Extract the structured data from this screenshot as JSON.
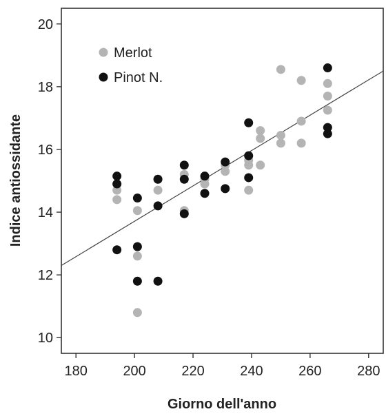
{
  "chart_data": {
    "type": "scatter",
    "title": "",
    "xlabel": "Giorno dell'anno",
    "ylabel": "Indice antiossidante",
    "xlim": [
      175,
      285
    ],
    "ylim": [
      9.5,
      20.5
    ],
    "xticks": [
      180,
      200,
      220,
      240,
      260,
      280
    ],
    "yticks": [
      10,
      12,
      14,
      16,
      18,
      20
    ],
    "grid": false,
    "legend_position": "top-left",
    "trendline": {
      "x": [
        175,
        285
      ],
      "y": [
        12.3,
        18.5
      ]
    },
    "series": [
      {
        "name": "Merlot",
        "color": "#b4b4b4",
        "points": [
          [
            194,
            14.7
          ],
          [
            194,
            14.4
          ],
          [
            194,
            14.9
          ],
          [
            201,
            14.05
          ],
          [
            201,
            12.6
          ],
          [
            201,
            10.8
          ],
          [
            208,
            14.7
          ],
          [
            208,
            15.05
          ],
          [
            217,
            14.05
          ],
          [
            217,
            15.2
          ],
          [
            224,
            15.05
          ],
          [
            224,
            14.9
          ],
          [
            231,
            15.5
          ],
          [
            231,
            15.3
          ],
          [
            239,
            14.7
          ],
          [
            239,
            15.5
          ],
          [
            239,
            15.65
          ],
          [
            243,
            16.6
          ],
          [
            243,
            16.35
          ],
          [
            243,
            15.5
          ],
          [
            250,
            18.55
          ],
          [
            250,
            16.45
          ],
          [
            250,
            16.2
          ],
          [
            257,
            18.2
          ],
          [
            257,
            16.9
          ],
          [
            257,
            16.2
          ],
          [
            266,
            18.1
          ],
          [
            266,
            17.7
          ],
          [
            266,
            17.25
          ]
        ]
      },
      {
        "name": "Pinot N.",
        "color": "#111111",
        "points": [
          [
            194,
            15.15
          ],
          [
            194,
            14.9
          ],
          [
            194,
            12.8
          ],
          [
            201,
            14.45
          ],
          [
            201,
            12.9
          ],
          [
            201,
            11.8
          ],
          [
            208,
            15.05
          ],
          [
            208,
            14.2
          ],
          [
            208,
            11.8
          ],
          [
            217,
            15.5
          ],
          [
            217,
            15.05
          ],
          [
            217,
            13.95
          ],
          [
            224,
            15.15
          ],
          [
            224,
            14.6
          ],
          [
            231,
            15.6
          ],
          [
            231,
            14.75
          ],
          [
            239,
            16.85
          ],
          [
            239,
            15.8
          ],
          [
            239,
            15.1
          ],
          [
            266,
            18.6
          ],
          [
            266,
            16.7
          ],
          [
            266,
            16.5
          ]
        ]
      }
    ]
  }
}
